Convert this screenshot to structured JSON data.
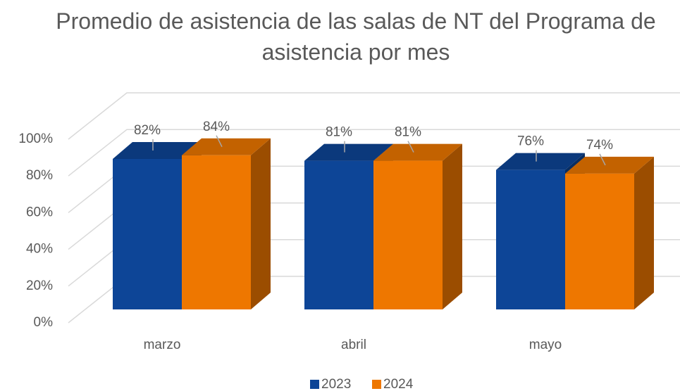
{
  "chart_data": {
    "type": "bar3d",
    "title": "Promedio de asistencia de las salas de NT del Programa de asistencia por mes",
    "categories": [
      "marzo",
      "abril",
      "mayo"
    ],
    "series": [
      {
        "name": "2023",
        "color": "#0d4597",
        "values": [
          82,
          81,
          76
        ],
        "value_labels": [
          "82%",
          "81%",
          "76%"
        ]
      },
      {
        "name": "2024",
        "color": "#ee7700",
        "values": [
          84,
          81,
          74
        ],
        "value_labels": [
          "84%",
          "81%",
          "74%"
        ]
      }
    ],
    "ylim": [
      0,
      100
    ],
    "yticks": [
      {
        "value": 0,
        "label": "0%"
      },
      {
        "value": 20,
        "label": "20%"
      },
      {
        "value": 40,
        "label": "40%"
      },
      {
        "value": 60,
        "label": "60%"
      },
      {
        "value": 80,
        "label": "80%"
      },
      {
        "value": 100,
        "label": "100%"
      }
    ],
    "grid": true,
    "legend": "bottom"
  }
}
